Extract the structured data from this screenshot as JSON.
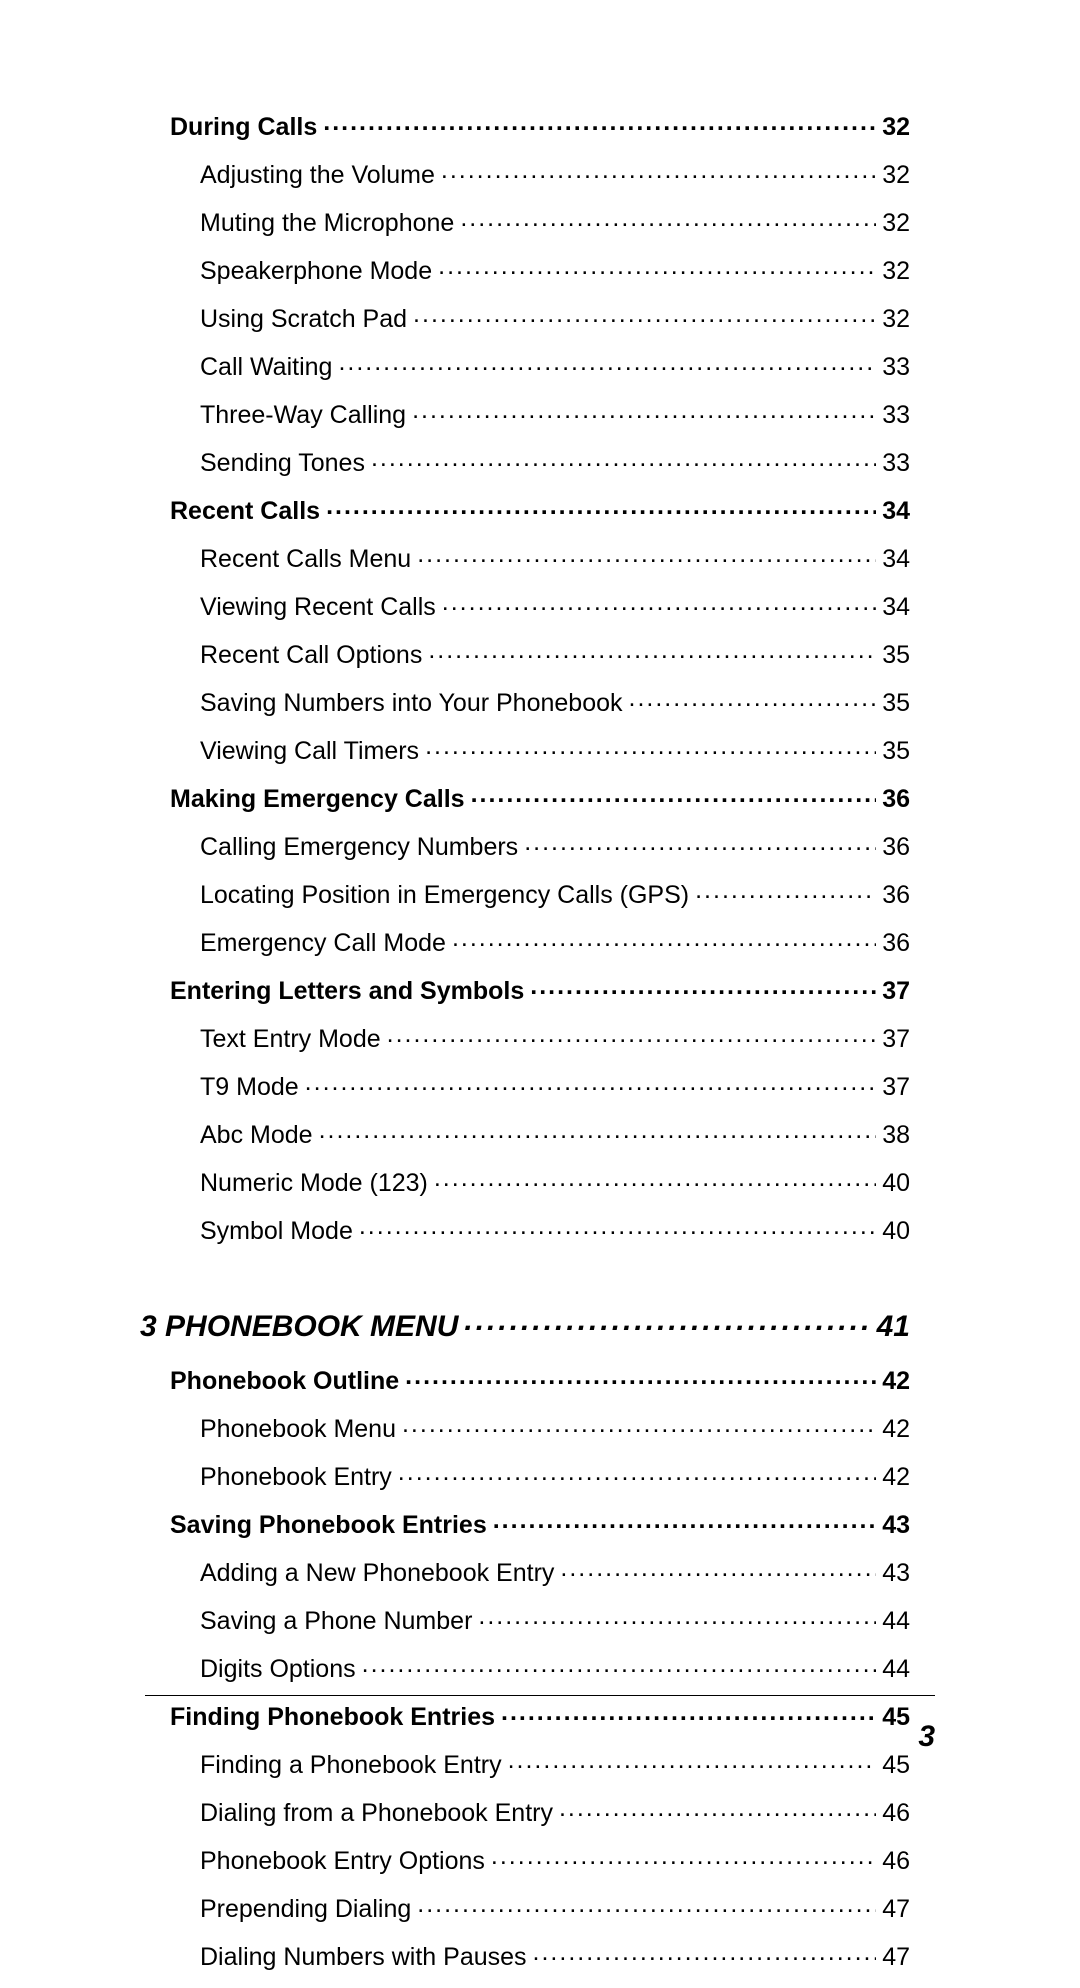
{
  "footer_page_number": "3",
  "toc": [
    {
      "level": "section",
      "label": "During Calls",
      "page": "32"
    },
    {
      "level": "sub",
      "label": "Adjusting the Volume",
      "page": "32"
    },
    {
      "level": "sub",
      "label": "Muting the Microphone",
      "page": "32"
    },
    {
      "level": "sub",
      "label": "Speakerphone Mode",
      "page": "32"
    },
    {
      "level": "sub",
      "label": "Using Scratch Pad",
      "page": "32"
    },
    {
      "level": "sub",
      "label": "Call Waiting",
      "page": "33"
    },
    {
      "level": "sub",
      "label": "Three-Way Calling",
      "page": "33"
    },
    {
      "level": "sub",
      "label": "Sending Tones",
      "page": "33"
    },
    {
      "level": "section",
      "label": "Recent Calls",
      "page": "34"
    },
    {
      "level": "sub",
      "label": "Recent Calls Menu",
      "page": "34"
    },
    {
      "level": "sub",
      "label": "Viewing Recent Calls",
      "page": "34"
    },
    {
      "level": "sub",
      "label": "Recent Call Options",
      "page": "35"
    },
    {
      "level": "sub",
      "label": "Saving Numbers into Your Phonebook",
      "page": "35"
    },
    {
      "level": "sub",
      "label": "Viewing Call Timers",
      "page": "35"
    },
    {
      "level": "section",
      "label": "Making Emergency Calls",
      "page": "36"
    },
    {
      "level": "sub",
      "label": "Calling Emergency Numbers",
      "page": "36"
    },
    {
      "level": "sub",
      "label": "Locating Position in Emergency Calls (GPS)",
      "page": "36"
    },
    {
      "level": "sub",
      "label": "Emergency Call Mode",
      "page": "36"
    },
    {
      "level": "section",
      "label": "Entering Letters and Symbols",
      "page": "37"
    },
    {
      "level": "sub",
      "label": "Text Entry Mode",
      "page": "37"
    },
    {
      "level": "sub",
      "label": "T9 Mode",
      "page": "37"
    },
    {
      "level": "sub",
      "label": "Abc Mode",
      "page": "38"
    },
    {
      "level": "sub",
      "label": "Numeric Mode (123)",
      "page": "40"
    },
    {
      "level": "sub",
      "label": "Symbol Mode",
      "page": "40"
    },
    {
      "level": "chapter",
      "label": "3  PHONEBOOK MENU",
      "page": "41"
    },
    {
      "level": "section",
      "label": "Phonebook Outline",
      "page": "42"
    },
    {
      "level": "sub",
      "label": "Phonebook Menu",
      "page": "42"
    },
    {
      "level": "sub",
      "label": "Phonebook Entry",
      "page": "42"
    },
    {
      "level": "section",
      "label": "Saving Phonebook Entries",
      "page": "43"
    },
    {
      "level": "sub",
      "label": "Adding a New Phonebook Entry",
      "page": "43"
    },
    {
      "level": "sub",
      "label": "Saving a Phone Number",
      "page": "44"
    },
    {
      "level": "sub",
      "label": "Digits Options",
      "page": "44"
    },
    {
      "level": "section",
      "label": "Finding Phonebook Entries",
      "page": "45"
    },
    {
      "level": "sub",
      "label": "Finding a Phonebook Entry",
      "page": "45"
    },
    {
      "level": "sub",
      "label": "Dialing from a Phonebook Entry",
      "page": "46"
    },
    {
      "level": "sub",
      "label": "Phonebook Entry Options",
      "page": "46"
    },
    {
      "level": "sub",
      "label": "Prepending Dialing",
      "page": "47"
    },
    {
      "level": "sub",
      "label": "Dialing Numbers with Pauses",
      "page": "47"
    }
  ]
}
